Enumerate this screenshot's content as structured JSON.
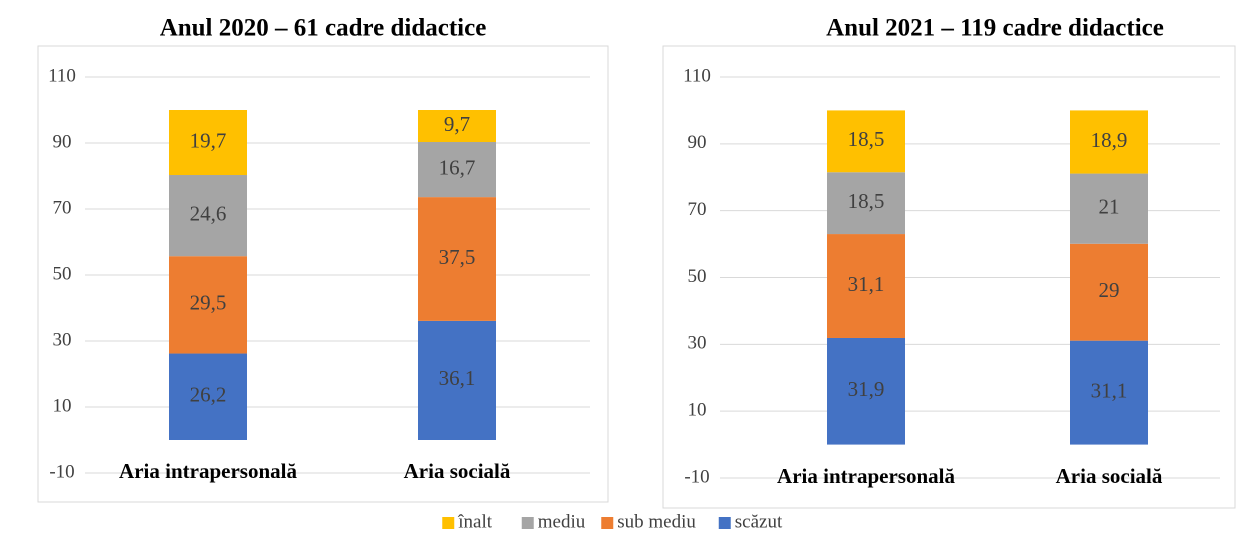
{
  "chart_data": [
    {
      "type": "bar",
      "stacked": true,
      "title": "Anul 2020 – 61 cadre didactice",
      "categories": [
        "Aria intrapersonală",
        "Aria socială"
      ],
      "ylim": [
        -10,
        110
      ],
      "yticks": [
        -10,
        10,
        30,
        50,
        70,
        90,
        110
      ],
      "grid": true,
      "series": [
        {
          "name": "scăzut",
          "color": "#4472c4",
          "values": [
            26.2,
            36.1
          ],
          "value_labels": [
            "26,2",
            "36,1"
          ]
        },
        {
          "name": "sub mediu",
          "color": "#ed7d31",
          "values": [
            29.5,
            37.5
          ],
          "value_labels": [
            "29,5",
            "37,5"
          ]
        },
        {
          "name": "mediu",
          "color": "#a5a5a5",
          "values": [
            24.6,
            16.7
          ],
          "value_labels": [
            "24,6",
            "16,7"
          ]
        },
        {
          "name": "înalt",
          "color": "#ffc000",
          "values": [
            19.7,
            9.7
          ],
          "value_labels": [
            "19,7",
            "9,7"
          ]
        }
      ]
    },
    {
      "type": "bar",
      "stacked": true,
      "title": "Anul 2021 – 119 cadre didactice",
      "categories": [
        "Aria intrapersonală",
        "Aria socială"
      ],
      "ylim": [
        -10,
        110
      ],
      "yticks": [
        -10,
        10,
        30,
        50,
        70,
        90,
        110
      ],
      "grid": true,
      "series": [
        {
          "name": "scăzut",
          "color": "#4472c4",
          "values": [
            31.9,
            31.1
          ],
          "value_labels": [
            "31,9",
            "31,1"
          ]
        },
        {
          "name": "sub mediu",
          "color": "#ed7d31",
          "values": [
            31.1,
            29
          ],
          "value_labels": [
            "31,1",
            "29"
          ]
        },
        {
          "name": "mediu",
          "color": "#a5a5a5",
          "values": [
            18.5,
            21
          ],
          "value_labels": [
            "18,5",
            "21"
          ]
        },
        {
          "name": "înalt",
          "color": "#ffc000",
          "values": [
            18.5,
            18.9
          ],
          "value_labels": [
            "18,5",
            "18,9"
          ]
        }
      ]
    }
  ]
}
